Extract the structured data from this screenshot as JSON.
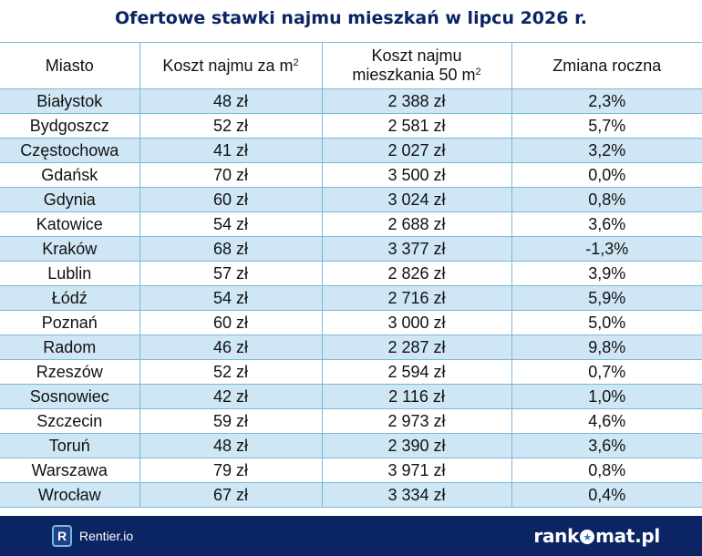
{
  "title": "Ofertowe stawki najmu mieszkań w lipcu 2026 r.",
  "table": {
    "headers": {
      "city": "Miasto",
      "per_m2": "Koszt najmu za m",
      "per_m2_sup": "2",
      "flat_line1": "Koszt najmu",
      "flat_line2": "mieszkania 50 m",
      "flat_sup": "2",
      "change": "Zmiana roczna"
    },
    "rows": [
      {
        "city": "Białystok",
        "per_m2": "48 zł",
        "flat": "2 388 zł",
        "change": "2,3%"
      },
      {
        "city": "Bydgoszcz",
        "per_m2": "52 zł",
        "flat": "2 581 zł",
        "change": "5,7%"
      },
      {
        "city": "Częstochowa",
        "per_m2": "41 zł",
        "flat": "2 027 zł",
        "change": "3,2%"
      },
      {
        "city": "Gdańsk",
        "per_m2": "70 zł",
        "flat": "3 500 zł",
        "change": "0,0%"
      },
      {
        "city": "Gdynia",
        "per_m2": "60 zł",
        "flat": "3 024 zł",
        "change": "0,8%"
      },
      {
        "city": "Katowice",
        "per_m2": "54 zł",
        "flat": "2 688 zł",
        "change": "3,6%"
      },
      {
        "city": "Kraków",
        "per_m2": "68 zł",
        "flat": "3 377 zł",
        "change": "-1,3%"
      },
      {
        "city": "Lublin",
        "per_m2": "57 zł",
        "flat": "2 826 zł",
        "change": "3,9%"
      },
      {
        "city": "Łódź",
        "per_m2": "54 zł",
        "flat": "2 716 zł",
        "change": "5,9%"
      },
      {
        "city": "Poznań",
        "per_m2": "60 zł",
        "flat": "3 000 zł",
        "change": "5,0%"
      },
      {
        "city": "Radom",
        "per_m2": "46 zł",
        "flat": "2 287 zł",
        "change": "9,8%"
      },
      {
        "city": "Rzeszów",
        "per_m2": "52 zł",
        "flat": "2 594 zł",
        "change": "0,7%"
      },
      {
        "city": "Sosnowiec",
        "per_m2": "42 zł",
        "flat": "2 116 zł",
        "change": "1,0%"
      },
      {
        "city": "Szczecin",
        "per_m2": "59 zł",
        "flat": "2 973 zł",
        "change": "4,6%"
      },
      {
        "city": "Toruń",
        "per_m2": "48 zł",
        "flat": "2 390 zł",
        "change": "3,6%"
      },
      {
        "city": "Warszawa",
        "per_m2": "79 zł",
        "flat": "3 971 zł",
        "change": "0,8%"
      },
      {
        "city": "Wrocław",
        "per_m2": "67 zł",
        "flat": "3 334 zł",
        "change": "0,4%"
      }
    ]
  },
  "footer": {
    "rentier_icon_letter": "R",
    "rentier_name": "Rentier.io",
    "brand_prefix": "rank",
    "brand_suffix": "mat.pl",
    "brand_star": "★"
  },
  "colors": {
    "navy": "#0b2463",
    "row_stripe": "#cfe7f4",
    "border": "#7ab8d8"
  }
}
